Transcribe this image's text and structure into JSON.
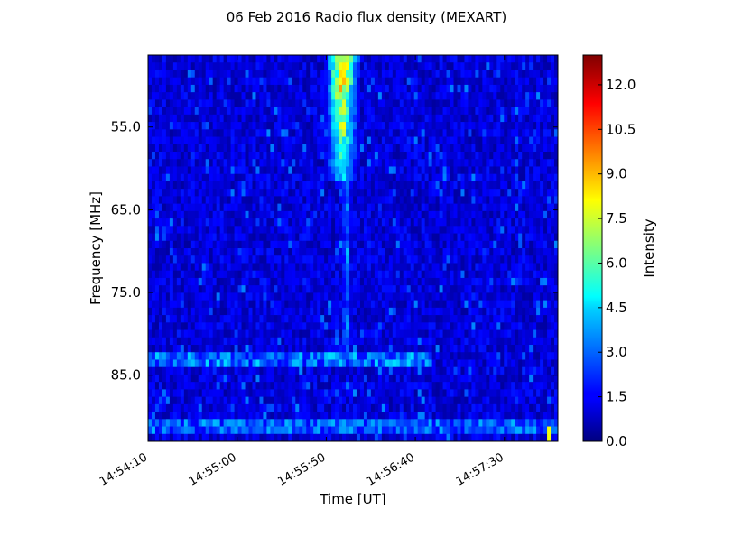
{
  "chart_data": {
    "type": "heatmap",
    "title": "06 Feb 2016 Radio flux density (MEXART)",
    "xlabel": "Time [UT]",
    "ylabel": "Frequency [MHz]",
    "colorbar_label": "Intensity",
    "colormap": "jet",
    "x_range": [
      "14:54:10",
      "14:58:00"
    ],
    "y_range": [
      46.3,
      93.0
    ],
    "y_inverted": true,
    "x_ticks": [
      "14:54:10",
      "14:55:00",
      "14:55:50",
      "14:56:40",
      "14:57:30"
    ],
    "y_ticks": [
      55.0,
      65.0,
      75.0,
      85.0
    ],
    "y_tick_labels": [
      "55.0",
      "65.0",
      "75.0",
      "85.0"
    ],
    "colorbar_range": [
      0.0,
      13.0
    ],
    "colorbar_ticks": [
      0.0,
      1.5,
      3.0,
      4.5,
      6.0,
      7.5,
      9.0,
      10.5,
      12.0
    ],
    "colorbar_tick_labels": [
      "0.0",
      "1.5",
      "3.0",
      "4.5",
      "6.0",
      "7.5",
      "9.0",
      "10.5",
      "12.0"
    ],
    "features": [
      {
        "kind": "burst",
        "t_start": "14:55:48",
        "t_end": "14:56:10",
        "f_low": 46.3,
        "f_high": 62.0,
        "peak": 12.5
      },
      {
        "kind": "burst-tail",
        "t_start": "14:55:58",
        "t_end": "14:56:05",
        "f_low": 62.0,
        "f_high": 83.0,
        "peak": 5.5
      },
      {
        "kind": "interference-band",
        "frequency": 83.5,
        "t_start": "14:54:10",
        "t_end": "14:56:50",
        "peak": 4.5
      },
      {
        "kind": "interference-band",
        "frequency": 91.0,
        "t_start": "14:54:10",
        "t_end": "14:58:00",
        "peak": 4.0
      },
      {
        "kind": "spike",
        "time": "14:57:55",
        "frequency": 92.0,
        "peak": 8.0
      }
    ]
  }
}
